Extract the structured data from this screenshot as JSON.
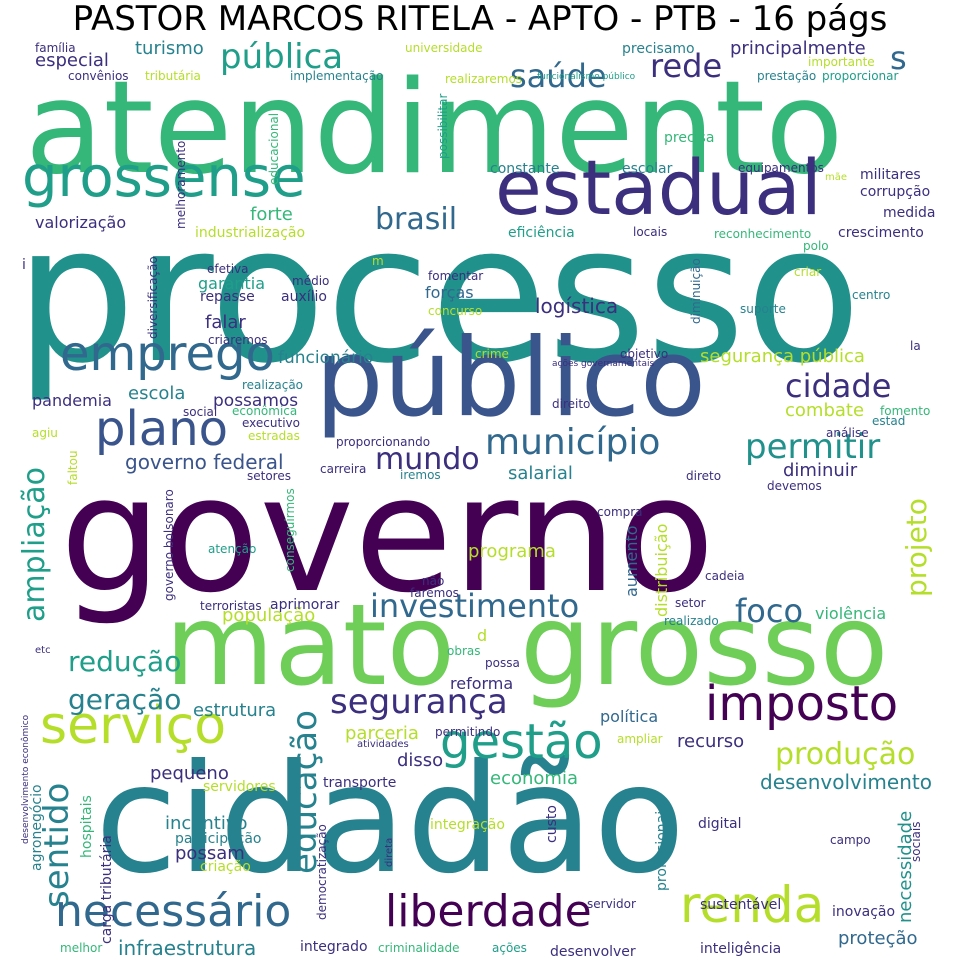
{
  "title": "PASTOR MARCOS RITELA - APTO - PTB - 16 págs",
  "palette": {
    "purple": "#440154",
    "indigo": "#3b2f7e",
    "blue": "#3a548c",
    "slate": "#31688e",
    "teal": "#26828e",
    "teal2": "#21918c",
    "sea": "#1f9e89",
    "green": "#35b779",
    "lime": "#6ece58",
    "yellowgreen": "#b5de2b",
    "yellow": "#d9e51c"
  },
  "words": [
    "atendimento",
    "processo",
    "governo",
    "cidadão",
    "mato",
    "grosso",
    "público",
    "estadual",
    "grossense",
    "emprego",
    "plano",
    "serviço",
    "imposto",
    "gestão",
    "necessário",
    "liberdade",
    "renda",
    "investimento",
    "segurança",
    "município",
    "permitir",
    "cidade",
    "brasil",
    "saúde",
    "rede",
    "pública",
    "educação",
    "sentido",
    "ampliação",
    "projeto",
    "produção",
    "foco",
    "redução",
    "geração",
    "mundo",
    "governo federal",
    "infraestrutura",
    "desenvolvimento",
    "necessidade",
    "segurança pública",
    "principalmente",
    "turismo",
    "especial",
    "valorização",
    "forte",
    "industrialização",
    "logística",
    "forças",
    "falar",
    "funcionário",
    "escola",
    "pandemia",
    "possamos",
    "combate",
    "diminuir",
    "salarial",
    "programa",
    "aumento",
    "distribuição",
    "população",
    "violência",
    "reforma",
    "política",
    "recurso",
    "estrutura",
    "parceria",
    "disso",
    "economia",
    "pequeno",
    "incentivo",
    "participação",
    "possam",
    "agronegócio",
    "hospitais",
    "carga tributária",
    "criação",
    "proteção",
    "integrado",
    "desenvolver",
    "inteligência",
    "sustentável",
    "inovação",
    "profissionais",
    "digital",
    "custo",
    "integração",
    "democratização",
    "transporte",
    "servidores",
    "família",
    "convênios",
    "tributária",
    "implementação",
    "universidade",
    "realizaremos",
    "funcionalismo público",
    "importante",
    "prestação",
    "proporcionar",
    "precisamo",
    "educacional",
    "possibilitar",
    "precisa",
    "constante",
    "escolar",
    "equipamentos",
    "militares",
    "corrupção",
    "medida",
    "crescimento",
    "eficiência",
    "locais",
    "reconhecimento",
    "melhoramento",
    "mãe",
    "diversificação",
    "efetiva",
    "garantia",
    "repasse",
    "médio",
    "auxílio",
    "fomentar",
    "concurso",
    "diminuição",
    "suporte",
    "criar",
    "polo",
    "centro",
    "criaremos",
    "crime",
    "objetivo",
    "ações governamentais",
    "realização",
    "econômica",
    "executivo",
    "estradas",
    "social",
    "agiu",
    "faltou",
    "direito",
    "proporcionando",
    "carreira",
    "iremos",
    "direto",
    "análise",
    "estad",
    "fomento",
    "setores",
    "conseguirmos",
    "governo bolsonaro",
    "atenção",
    "aprimorar",
    "terroristas",
    "faremos",
    "não",
    "setor",
    "realizado",
    "cadeia",
    "compra",
    "devemos",
    "obras",
    "possa",
    "d",
    "etc",
    "permitindo",
    "atividades",
    "ampliar",
    "direta",
    "servidor",
    "campo",
    "sociais",
    "melhor",
    "criminalidade",
    "ações",
    "desenvolvimento econômico",
    "i",
    "m",
    "la",
    "s",
    "m"
  ]
}
